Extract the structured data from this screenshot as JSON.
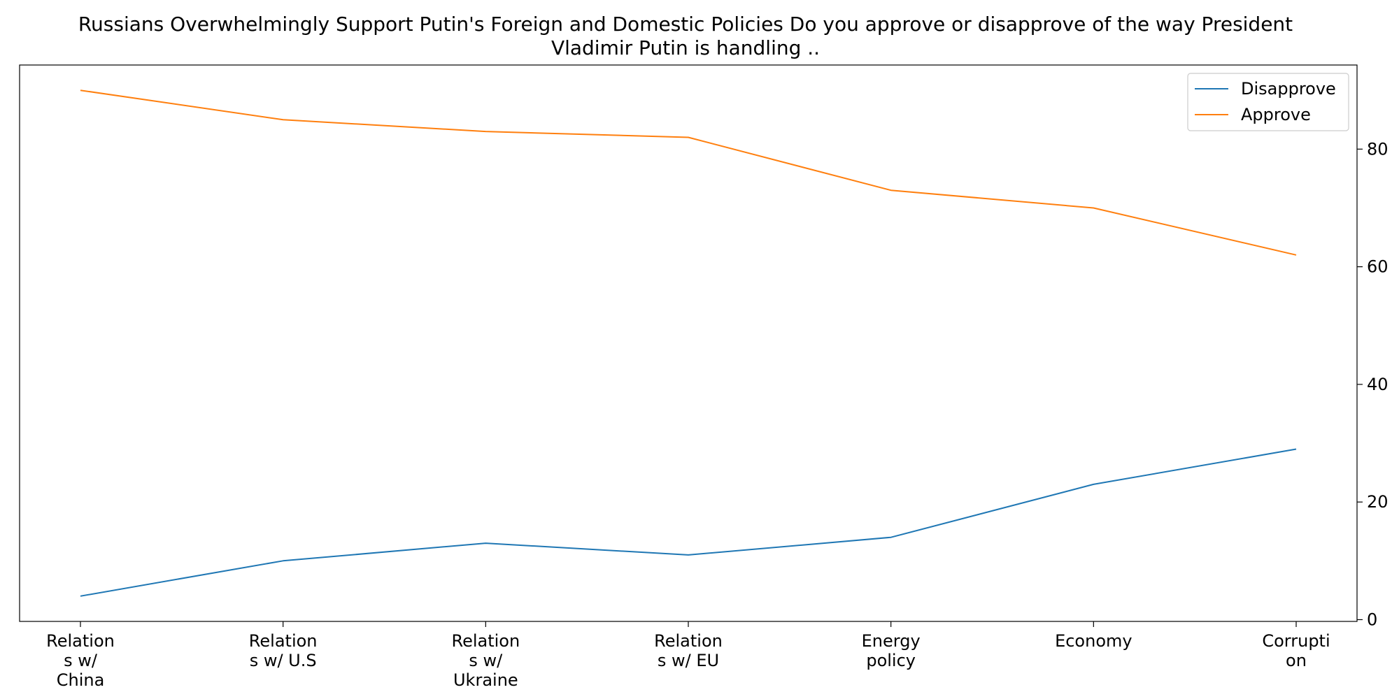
{
  "chart_data": {
    "type": "line",
    "title_lines": [
      "Russians Overwhelmingly Support Putin's Foreign and Domestic Policies Do you approve or disapprove of the way President",
      "Vladimir Putin is handling .."
    ],
    "categories": [
      [
        "Relation",
        "s w/",
        "China"
      ],
      [
        "Relation",
        "s w/ U.S"
      ],
      [
        "Relation",
        "s w/",
        "Ukraine"
      ],
      [
        "Relation",
        "s w/ EU"
      ],
      [
        "Energy",
        "policy"
      ],
      [
        "Economy"
      ],
      [
        "Corrupti",
        "on"
      ]
    ],
    "series": [
      {
        "name": "Disapprove",
        "color": "#1f77b4",
        "values": [
          4,
          10,
          13,
          11,
          14,
          23,
          29
        ]
      },
      {
        "name": "Approve",
        "color": "#ff7f0e",
        "values": [
          90,
          85,
          83,
          82,
          73,
          70,
          62
        ]
      }
    ],
    "y_ticks": [
      0,
      20,
      40,
      60,
      80
    ],
    "ylim": [
      -0.3,
      94.3
    ],
    "y_axis_side": "right",
    "legend_position": "top-right",
    "grid": false,
    "xlabel": "",
    "ylabel": ""
  }
}
